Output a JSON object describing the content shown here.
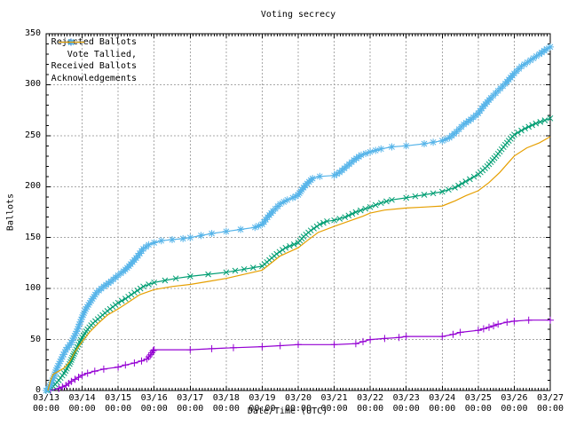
{
  "axes": {
    "y_ticks": [
      0,
      50,
      100,
      150,
      200,
      250,
      300,
      350
    ],
    "x_tick_dates": [
      "03/13",
      "03/14",
      "03/15",
      "03/16",
      "03/17",
      "03/18",
      "03/19",
      "03/20",
      "03/21",
      "03/22",
      "03/23",
      "03/24",
      "03/25",
      "03/26",
      "03/27"
    ],
    "x_tick_time": "00:00"
  },
  "colors": {
    "grid": "#a8a8a8",
    "border": "#000000",
    "rejected": "#9400D3",
    "tallied": "#009E73",
    "received": "#56B4E9",
    "acknowledgements": "#E69F00"
  },
  "chart_data": {
    "type": "line",
    "title": "Voting secrecy",
    "xlabel": "Date/Time (UTC)",
    "ylabel": "Ballots",
    "xlim": [
      "03/13 00:00",
      "03/27 00:00"
    ],
    "ylim": [
      0,
      350
    ],
    "x_unit": "days since 03/13 00:00 UTC",
    "grid": true,
    "legend_position": "top-left",
    "series": [
      {
        "name": "Rejected Ballots",
        "color": "#9400D3",
        "marker": "plus",
        "points": [
          [
            0.12,
            0
          ],
          [
            0.35,
            2
          ],
          [
            0.55,
            5
          ],
          [
            0.7,
            9
          ],
          [
            0.9,
            13
          ],
          [
            1,
            15
          ],
          [
            1.15,
            17
          ],
          [
            1.35,
            19
          ],
          [
            1.6,
            21
          ],
          [
            2,
            23
          ],
          [
            2.2,
            25
          ],
          [
            2.45,
            27
          ],
          [
            2.65,
            29
          ],
          [
            2.8,
            31
          ],
          [
            2.9,
            35
          ],
          [
            2.97,
            39
          ],
          [
            3,
            40
          ],
          [
            4,
            40
          ],
          [
            4.6,
            41
          ],
          [
            5.2,
            42
          ],
          [
            6,
            43
          ],
          [
            6.5,
            44
          ],
          [
            7,
            45
          ],
          [
            8,
            45
          ],
          [
            8.6,
            46
          ],
          [
            8.8,
            48
          ],
          [
            9,
            50
          ],
          [
            9.4,
            51
          ],
          [
            9.8,
            52
          ],
          [
            10,
            53
          ],
          [
            11,
            53
          ],
          [
            11.3,
            55
          ],
          [
            11.5,
            57
          ],
          [
            12,
            59
          ],
          [
            12.3,
            62
          ],
          [
            12.55,
            65
          ],
          [
            12.8,
            67
          ],
          [
            13,
            68
          ],
          [
            13.4,
            69
          ],
          [
            14,
            69
          ]
        ]
      },
      {
        "name": "Vote Tallied,",
        "color": "#009E73",
        "marker": "cross",
        "points": [
          [
            0.05,
            0
          ],
          [
            0.2,
            4
          ],
          [
            0.35,
            10
          ],
          [
            0.5,
            17
          ],
          [
            0.65,
            26
          ],
          [
            0.8,
            38
          ],
          [
            1,
            52
          ],
          [
            1.15,
            60
          ],
          [
            1.3,
            66
          ],
          [
            1.5,
            72
          ],
          [
            1.7,
            78
          ],
          [
            2,
            86
          ],
          [
            2.2,
            90
          ],
          [
            2.45,
            96
          ],
          [
            2.7,
            102
          ],
          [
            3,
            106
          ],
          [
            3.3,
            108
          ],
          [
            3.6,
            110
          ],
          [
            4,
            112
          ],
          [
            4.5,
            114
          ],
          [
            5,
            116
          ],
          [
            5.5,
            119
          ],
          [
            6,
            122
          ],
          [
            6.2,
            128
          ],
          [
            6.4,
            134
          ],
          [
            6.65,
            140
          ],
          [
            7,
            145
          ],
          [
            7.15,
            151
          ],
          [
            7.35,
            157
          ],
          [
            7.6,
            163
          ],
          [
            7.8,
            166
          ],
          [
            8,
            167
          ],
          [
            8.3,
            170
          ],
          [
            8.6,
            175
          ],
          [
            9,
            180
          ],
          [
            9.3,
            184
          ],
          [
            9.6,
            187
          ],
          [
            10,
            189
          ],
          [
            10.5,
            192
          ],
          [
            11,
            195
          ],
          [
            11.35,
            199
          ],
          [
            11.65,
            205
          ],
          [
            12,
            212
          ],
          [
            12.25,
            220
          ],
          [
            12.5,
            230
          ],
          [
            12.75,
            241
          ],
          [
            13,
            251
          ],
          [
            13.3,
            257
          ],
          [
            13.6,
            262
          ],
          [
            13.85,
            265
          ],
          [
            14,
            267
          ]
        ]
      },
      {
        "name": "Received Ballots",
        "color": "#56B4E9",
        "marker": "star",
        "points": [
          [
            0,
            0
          ],
          [
            0.1,
            4
          ],
          [
            0.2,
            12
          ],
          [
            0.3,
            22
          ],
          [
            0.45,
            33
          ],
          [
            0.55,
            40
          ],
          [
            0.7,
            47
          ],
          [
            0.85,
            58
          ],
          [
            1,
            72
          ],
          [
            1.1,
            80
          ],
          [
            1.25,
            88
          ],
          [
            1.4,
            96
          ],
          [
            1.6,
            102
          ],
          [
            1.8,
            107
          ],
          [
            2,
            113
          ],
          [
            2.15,
            117
          ],
          [
            2.3,
            122
          ],
          [
            2.5,
            130
          ],
          [
            2.7,
            139
          ],
          [
            2.85,
            143
          ],
          [
            3,
            145
          ],
          [
            3.2,
            147
          ],
          [
            3.5,
            148
          ],
          [
            3.8,
            149
          ],
          [
            4,
            150
          ],
          [
            4.3,
            152
          ],
          [
            4.6,
            154
          ],
          [
            5,
            156
          ],
          [
            5.4,
            158
          ],
          [
            5.8,
            160
          ],
          [
            6,
            163
          ],
          [
            6.15,
            170
          ],
          [
            6.3,
            176
          ],
          [
            6.5,
            183
          ],
          [
            6.7,
            187
          ],
          [
            6.85,
            189
          ],
          [
            7,
            192
          ],
          [
            7.1,
            197
          ],
          [
            7.25,
            203
          ],
          [
            7.4,
            208
          ],
          [
            7.6,
            210
          ],
          [
            8,
            211
          ],
          [
            8.15,
            214
          ],
          [
            8.35,
            220
          ],
          [
            8.55,
            226
          ],
          [
            8.75,
            231
          ],
          [
            9,
            234
          ],
          [
            9.3,
            237
          ],
          [
            9.6,
            239
          ],
          [
            10,
            240
          ],
          [
            10.5,
            242
          ],
          [
            11,
            245
          ],
          [
            11.2,
            248
          ],
          [
            11.4,
            254
          ],
          [
            11.6,
            261
          ],
          [
            11.8,
            266
          ],
          [
            12,
            272
          ],
          [
            12.15,
            279
          ],
          [
            12.35,
            287
          ],
          [
            12.55,
            294
          ],
          [
            12.75,
            301
          ],
          [
            13,
            311
          ],
          [
            13.2,
            318
          ],
          [
            13.45,
            324
          ],
          [
            13.7,
            330
          ],
          [
            13.9,
            335
          ],
          [
            14,
            337
          ]
        ]
      },
      {
        "name": "Acknowledgements",
        "color": "#E69F00",
        "marker": "none",
        "points": [
          [
            0.05,
            0
          ],
          [
            0.12,
            10
          ],
          [
            0.2,
            16
          ],
          [
            0.35,
            19
          ],
          [
            0.5,
            22
          ],
          [
            0.65,
            28
          ],
          [
            0.8,
            38
          ],
          [
            1,
            48
          ],
          [
            1.2,
            57
          ],
          [
            1.45,
            66
          ],
          [
            1.7,
            74
          ],
          [
            2,
            80
          ],
          [
            2.3,
            87
          ],
          [
            2.6,
            94
          ],
          [
            3,
            99
          ],
          [
            3.5,
            102
          ],
          [
            4,
            104
          ],
          [
            4.5,
            107
          ],
          [
            5,
            110
          ],
          [
            5.5,
            114
          ],
          [
            6,
            118
          ],
          [
            6.25,
            125
          ],
          [
            6.5,
            132
          ],
          [
            7,
            140
          ],
          [
            7.25,
            147
          ],
          [
            7.55,
            155
          ],
          [
            8,
            161
          ],
          [
            8.4,
            166
          ],
          [
            8.8,
            171
          ],
          [
            9,
            174
          ],
          [
            9.4,
            177
          ],
          [
            10,
            179
          ],
          [
            10.5,
            180
          ],
          [
            11,
            181
          ],
          [
            11.35,
            186
          ],
          [
            11.65,
            191
          ],
          [
            12,
            196
          ],
          [
            12.3,
            204
          ],
          [
            12.6,
            214
          ],
          [
            12.85,
            224
          ],
          [
            13,
            230
          ],
          [
            13.35,
            238
          ],
          [
            13.7,
            243
          ],
          [
            14,
            249
          ]
        ]
      }
    ]
  }
}
